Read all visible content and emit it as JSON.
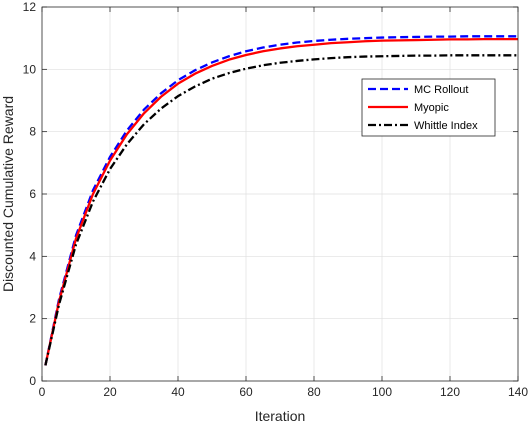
{
  "chart_data": {
    "type": "line",
    "xlabel": "Iteration",
    "ylabel": "Discounted Cumulative Reward",
    "xlim": [
      0,
      140
    ],
    "ylim": [
      0,
      12
    ],
    "xticks": [
      0,
      20,
      40,
      60,
      80,
      100,
      120,
      140
    ],
    "yticks": [
      0,
      2,
      4,
      6,
      8,
      10,
      12
    ],
    "grid": true,
    "legend_position": "top-right",
    "x": [
      1,
      5,
      10,
      15,
      20,
      25,
      30,
      35,
      40,
      45,
      50,
      55,
      60,
      65,
      70,
      75,
      80,
      85,
      90,
      95,
      100,
      105,
      110,
      115,
      120,
      125,
      130,
      135,
      140
    ],
    "series": [
      {
        "name": "MC Rollout",
        "color": "#0000ff",
        "dash": "dashed",
        "values": [
          0.5,
          2.62,
          4.67,
          6.12,
          7.19,
          8.04,
          8.71,
          9.23,
          9.65,
          9.97,
          10.22,
          10.42,
          10.58,
          10.7,
          10.79,
          10.86,
          10.91,
          10.95,
          10.98,
          11.0,
          11.02,
          11.03,
          11.04,
          11.05,
          11.05,
          11.06,
          11.06,
          11.06,
          11.06
        ]
      },
      {
        "name": "Myopic",
        "color": "#ff0000",
        "dash": "solid",
        "values": [
          0.5,
          2.55,
          4.57,
          6.0,
          7.07,
          7.92,
          8.59,
          9.12,
          9.54,
          9.86,
          10.11,
          10.31,
          10.46,
          10.58,
          10.67,
          10.74,
          10.79,
          10.84,
          10.87,
          10.9,
          10.92,
          10.93,
          10.94,
          10.95,
          10.96,
          10.96,
          10.97,
          10.97,
          10.97
        ]
      },
      {
        "name": "Whittle Index",
        "color": "#000000",
        "dash": "dashdot",
        "values": [
          0.5,
          2.45,
          4.38,
          5.76,
          6.8,
          7.6,
          8.24,
          8.74,
          9.14,
          9.45,
          9.7,
          9.88,
          10.02,
          10.13,
          10.21,
          10.27,
          10.32,
          10.36,
          10.39,
          10.41,
          10.42,
          10.43,
          10.44,
          10.44,
          10.45,
          10.45,
          10.45,
          10.45,
          10.45
        ]
      }
    ]
  }
}
